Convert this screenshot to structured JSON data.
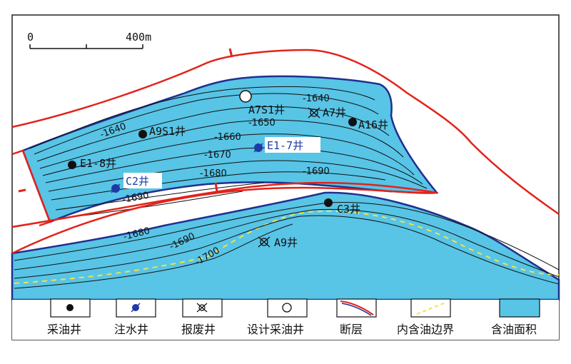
{
  "scale_bar": {
    "start_label": "0",
    "end_label": "400m"
  },
  "colors": {
    "oil_area": "#58c4e6",
    "fault": "#e2231a",
    "oil_boundary": "#1f2f8f",
    "inner_boundary": "#f0e24a",
    "contour": "#111111",
    "injection_well": "#1f3aa6"
  },
  "contours": {
    "c1640a": "-1640",
    "c1640b": "-1640",
    "c1650": "-1650",
    "c1660": "-1660",
    "c1670": "-1670",
    "c1680a": "-1680",
    "c1690a": "-1690",
    "c1690b": "-1690",
    "c1680b": "-1680",
    "c1690c": "-1690",
    "c1700": "-1700"
  },
  "wells": {
    "a7s1": "A7S1井",
    "a7": "A7井",
    "a16": "A16井",
    "a9s1": "A9S1井",
    "e1_7": "E1-7井",
    "e1_8": "E1-8井",
    "c2": "C2井",
    "c3": "C3井",
    "a9": "A9井"
  },
  "legend": {
    "production_well": "采油井",
    "injection_well": "注水井",
    "abandoned_well": "报废井",
    "planned_well": "设计采油井",
    "fault": "断层",
    "inner_oil_boundary": "内含油边界",
    "oil_area": "含油面积"
  }
}
